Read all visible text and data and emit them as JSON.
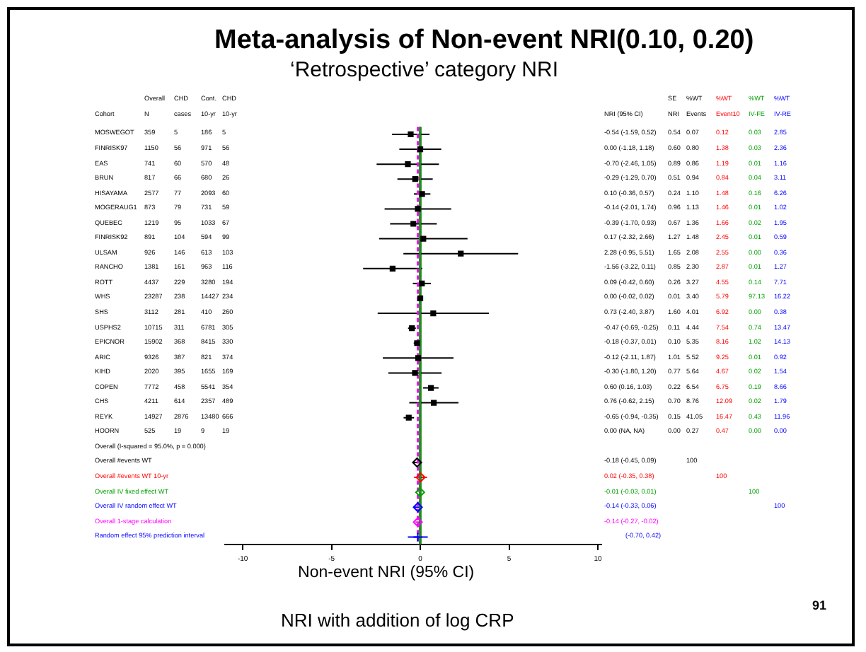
{
  "chart_data": {
    "type": "scatter",
    "orientation": "horizontal",
    "title": "Meta-analysis of Non-event NRI(0.10, 0.20)",
    "subtitle": "‘Retrospective’ category NRI",
    "xlabel": "Non-event NRI (95% CI)",
    "categories": [
      "MOSWEGOT",
      "FINRISK97",
      "EAS",
      "BRUN",
      "HISAYAMA",
      "MOGERAUG1",
      "QUEBEC",
      "FINRISK92",
      "ULSAM",
      "RANCHO",
      "ROTT",
      "WHS",
      "SHS",
      "USPHS2",
      "EPICNOR",
      "ARIC",
      "KIHD",
      "COPEN",
      "CHS",
      "REYK",
      "HOORN",
      "Overall  (I-squared = 95.0%, p = 0.000)",
      "Overall #events WT",
      "Overall #events WT 10-yr",
      "Overall IV fixed effect WT",
      "Overall IV random effect WT",
      "Overall 1-stage calculation",
      "Random effect 95% prediction interval"
    ],
    "xlim": [
      -11,
      10.2
    ],
    "xticks": [
      -10,
      -5,
      0,
      5,
      10
    ],
    "grid": false,
    "legend": false,
    "ref_lines": [
      {
        "axis": "x",
        "value": 0,
        "color": "#000000",
        "line_style": "solid"
      },
      {
        "axis": "x",
        "value": -0.01,
        "color": "#00a000",
        "line_style": "solid"
      },
      {
        "axis": "x",
        "value": -0.14,
        "color": "#ff00ff",
        "line_style": "dashed"
      }
    ],
    "series": [
      {
        "color": "#000000",
        "marker": "square",
        "values": [
          -0.54,
          0.0,
          -0.7,
          -0.29,
          0.1,
          -0.14,
          -0.39,
          0.17,
          2.28,
          -1.56,
          0.09,
          0.0,
          0.73,
          -0.47,
          -0.18,
          -0.12,
          -0.3,
          0.6,
          0.76,
          -0.65,
          null,
          null,
          null,
          null,
          null,
          null,
          null,
          null
        ],
        "errors": [
          [
            -1.59,
            0.52
          ],
          [
            -1.18,
            1.18
          ],
          [
            -2.46,
            1.05
          ],
          [
            -1.29,
            0.7
          ],
          [
            -0.36,
            0.57
          ],
          [
            -2.01,
            1.74
          ],
          [
            -1.7,
            0.93
          ],
          [
            -2.32,
            2.66
          ],
          [
            -0.95,
            5.51
          ],
          [
            -3.22,
            0.11
          ],
          [
            -0.42,
            0.6
          ],
          null,
          [
            -2.4,
            3.87
          ],
          [
            -0.69,
            -0.25
          ],
          [
            -0.37,
            0.01
          ],
          [
            -2.11,
            1.87
          ],
          [
            -1.8,
            1.2
          ],
          [
            0.16,
            1.03
          ],
          [
            -0.62,
            2.15
          ],
          [
            -0.94,
            -0.35
          ],
          null,
          null,
          null,
          null,
          null,
          null,
          null,
          null
        ]
      },
      {
        "color": "#000000",
        "marker": "diamond",
        "values": [
          null,
          null,
          null,
          null,
          null,
          null,
          null,
          null,
          null,
          null,
          null,
          null,
          null,
          null,
          null,
          null,
          null,
          null,
          null,
          null,
          null,
          null,
          -0.18,
          null,
          null,
          null,
          null,
          null
        ],
        "errors": [
          null,
          null,
          null,
          null,
          null,
          null,
          null,
          null,
          null,
          null,
          null,
          null,
          null,
          null,
          null,
          null,
          null,
          null,
          null,
          null,
          null,
          null,
          [
            -0.45,
            0.09
          ],
          null,
          null,
          null,
          null,
          null
        ]
      },
      {
        "color": "#ff0000",
        "marker": "diamond",
        "values": [
          null,
          null,
          null,
          null,
          null,
          null,
          null,
          null,
          null,
          null,
          null,
          null,
          null,
          null,
          null,
          null,
          null,
          null,
          null,
          null,
          null,
          null,
          null,
          0.02,
          null,
          null,
          null,
          null
        ],
        "errors": [
          null,
          null,
          null,
          null,
          null,
          null,
          null,
          null,
          null,
          null,
          null,
          null,
          null,
          null,
          null,
          null,
          null,
          null,
          null,
          null,
          null,
          null,
          null,
          [
            -0.35,
            0.38
          ],
          null,
          null,
          null,
          null
        ]
      },
      {
        "color": "#00a000",
        "marker": "diamond",
        "values": [
          null,
          null,
          null,
          null,
          null,
          null,
          null,
          null,
          null,
          null,
          null,
          null,
          null,
          null,
          null,
          null,
          null,
          null,
          null,
          null,
          null,
          null,
          null,
          null,
          -0.01,
          null,
          null,
          null
        ],
        "errors": [
          null,
          null,
          null,
          null,
          null,
          null,
          null,
          null,
          null,
          null,
          null,
          null,
          null,
          null,
          null,
          null,
          null,
          null,
          null,
          null,
          null,
          null,
          null,
          null,
          null,
          null,
          null,
          null
        ]
      },
      {
        "color": "#0000ff",
        "marker": "diamond",
        "values": [
          null,
          null,
          null,
          null,
          null,
          null,
          null,
          null,
          null,
          null,
          null,
          null,
          null,
          null,
          null,
          null,
          null,
          null,
          null,
          null,
          null,
          null,
          null,
          null,
          null,
          -0.14,
          null,
          null
        ],
        "errors": [
          null,
          null,
          null,
          null,
          null,
          null,
          null,
          null,
          null,
          null,
          null,
          null,
          null,
          null,
          null,
          null,
          null,
          null,
          null,
          null,
          null,
          null,
          null,
          null,
          null,
          [
            -0.33,
            0.06
          ],
          null,
          null
        ]
      },
      {
        "color": "#ff00ff",
        "marker": "diamond",
        "values": [
          null,
          null,
          null,
          null,
          null,
          null,
          null,
          null,
          null,
          null,
          null,
          null,
          null,
          null,
          null,
          null,
          null,
          null,
          null,
          null,
          null,
          null,
          null,
          null,
          null,
          null,
          -0.14,
          null
        ],
        "errors": [
          null,
          null,
          null,
          null,
          null,
          null,
          null,
          null,
          null,
          null,
          null,
          null,
          null,
          null,
          null,
          null,
          null,
          null,
          null,
          null,
          null,
          null,
          null,
          null,
          null,
          null,
          [
            -0.27,
            -0.02
          ],
          null
        ]
      },
      {
        "color": "#0000ff",
        "marker": "cross",
        "values": [
          null,
          null,
          null,
          null,
          null,
          null,
          null,
          null,
          null,
          null,
          null,
          null,
          null,
          null,
          null,
          null,
          null,
          null,
          null,
          null,
          null,
          null,
          null,
          null,
          null,
          null,
          null,
          -0.14
        ],
        "errors": [
          null,
          null,
          null,
          null,
          null,
          null,
          null,
          null,
          null,
          null,
          null,
          null,
          null,
          null,
          null,
          null,
          null,
          null,
          null,
          null,
          null,
          null,
          null,
          null,
          null,
          null,
          null,
          [
            -0.7,
            0.42
          ]
        ]
      }
    ],
    "annotations": [
      "Overall",
      "CHD",
      "Cont.",
      "CHD",
      "Cohort",
      "N",
      "cases",
      "10-yr",
      "10-yr",
      "SE",
      "%WT",
      "%WT",
      "%WT",
      "%WT",
      "NRI (95% CI)",
      "NRI",
      "Events",
      "Event10",
      "IV-FE",
      "IV-RE",
      "359",
      "5",
      "186",
      "5",
      "-0.54 (-1.59, 0.52)",
      "0.54",
      "0.07",
      "0.12",
      "0.03",
      "2.85",
      "1150",
      "56",
      "971",
      "56",
      "0.00 (-1.18, 1.18)",
      "0.60",
      "0.80",
      "1.38",
      "0.03",
      "2.36",
      "741",
      "60",
      "570",
      "48",
      "-0.70 (-2.46, 1.05)",
      "0.89",
      "0.86",
      "1.19",
      "0.01",
      "1.16",
      "817",
      "66",
      "680",
      "26",
      "-0.29 (-1.29, 0.70)",
      "0.51",
      "0.94",
      "0.84",
      "0.04",
      "3.11",
      "2577",
      "77",
      "2093",
      "60",
      "0.10 (-0.36, 0.57)",
      "0.24",
      "1.10",
      "1.48",
      "0.16",
      "6.26",
      "873",
      "79",
      "731",
      "59",
      "-0.14 (-2.01, 1.74)",
      "0.96",
      "1.13",
      "1.46",
      "0.01",
      "1.02",
      "1219",
      "95",
      "1033",
      "67",
      "-0.39 (-1.70, 0.93)",
      "0.67",
      "1.36",
      "1.66",
      "0.02",
      "1.95",
      "891",
      "104",
      "594",
      "99",
      "0.17 (-2.32, 2.66)",
      "1.27",
      "1.48",
      "2.45",
      "0.01",
      "0.59",
      "926",
      "146",
      "613",
      "103",
      "2.28 (-0.95, 5.51)",
      "1.65",
      "2.08",
      "2.55",
      "0.00",
      "0.36",
      "1381",
      "161",
      "963",
      "116",
      "-1.56 (-3.22, 0.11)",
      "0.85",
      "2.30",
      "2.87",
      "0.01",
      "1.27",
      "4437",
      "229",
      "3280",
      "194",
      "0.09 (-0.42, 0.60)",
      "0.26",
      "3.27",
      "4.55",
      "0.14",
      "7.71",
      "23287",
      "238",
      "14427",
      "234",
      "0.00 (-0.02, 0.02)",
      "0.01",
      "3.40",
      "5.79",
      "97.13",
      "16.22",
      "3112",
      "281",
      "410",
      "260",
      "0.73 (-2.40, 3.87)",
      "1.60",
      "4.01",
      "6.92",
      "0.00",
      "0.38",
      "10715",
      "311",
      "6781",
      "305",
      "-0.47 (-0.69, -0.25)",
      "0.11",
      "4.44",
      "7.54",
      "0.74",
      "13.47",
      "15902",
      "368",
      "8415",
      "330",
      "-0.18 (-0.37, 0.01)",
      "0.10",
      "5.35",
      "8.16",
      "1.02",
      "14.13",
      "9326",
      "387",
      "821",
      "374",
      "-0.12 (-2.11, 1.87)",
      "1.01",
      "5.52",
      "9.25",
      "0.01",
      "0.92",
      "2020",
      "395",
      "1655",
      "169",
      "-0.30 (-1.80, 1.20)",
      "0.77",
      "5.64",
      "4.67",
      "0.02",
      "1.54",
      "7772",
      "458",
      "5541",
      "354",
      "0.60 (0.16, 1.03)",
      "0.22",
      "6.54",
      "6.75",
      "0.19",
      "8.66",
      "4211",
      "614",
      "2357",
      "489",
      "0.76 (-0.62, 2.15)",
      "0.70",
      "8.76",
      "12.09",
      "0.02",
      "1.79",
      "14927",
      "2876",
      "13480",
      "666",
      "-0.65 (-0.94, -0.35)",
      "0.15",
      "41.05",
      "16.47",
      "0.43",
      "11.96",
      "525",
      "19",
      "9",
      "19",
      "0.00 (NA, NA)",
      "0.00",
      "0.27",
      "0.47",
      "0.00",
      "0.00",
      "-0.18 (-0.45, 0.09)",
      "100",
      "0.02 (-0.35, 0.38)",
      "100",
      "-0.01 (-0.03, 0.01)",
      "100",
      "-0.14 (-0.33, 0.06)",
      "100",
      "-0.14 (-0.27, -0.02)",
      "(-0.70, 0.42)",
      "NRI with addition of log CRP",
      "91"
    ]
  }
}
